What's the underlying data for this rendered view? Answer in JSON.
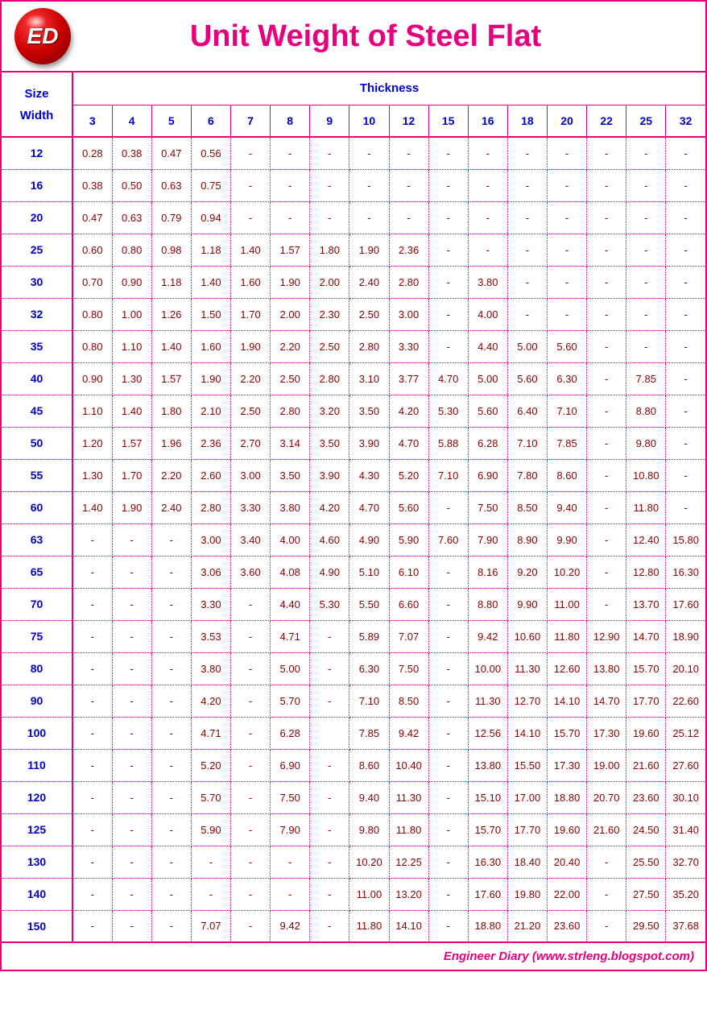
{
  "logo_text": "ED",
  "title": "Unit Weight of Steel Flat",
  "size_label": "Size",
  "width_label": "Width",
  "thickness_label": "Thickness",
  "footer": "Engineer Diary (www.strleng.blogspot.com)",
  "colors": {
    "border": "#e6007e",
    "header_text": "#0000cc",
    "data_text": "#8b0000",
    "title_text": "#e6007e",
    "footer_text": "#e6007e",
    "background": "#ffffff"
  },
  "table": {
    "thickness_cols": [
      "3",
      "4",
      "5",
      "6",
      "7",
      "8",
      "9",
      "10",
      "12",
      "15",
      "16",
      "18",
      "20",
      "22",
      "25",
      "32"
    ],
    "widths": [
      "12",
      "16",
      "20",
      "25",
      "30",
      "32",
      "35",
      "40",
      "45",
      "50",
      "55",
      "60",
      "63",
      "65",
      "70",
      "75",
      "80",
      "90",
      "100",
      "110",
      "120",
      "125",
      "130",
      "140",
      "150"
    ],
    "rows": [
      [
        "0.28",
        "0.38",
        "0.47",
        "0.56",
        "-",
        "-",
        "-",
        "-",
        "-",
        "-",
        "-",
        "-",
        "-",
        "-",
        "-",
        "-"
      ],
      [
        "0.38",
        "0.50",
        "0.63",
        "0.75",
        "-",
        "-",
        "-",
        "-",
        "-",
        "-",
        "-",
        "-",
        "-",
        "-",
        "-",
        "-"
      ],
      [
        "0.47",
        "0.63",
        "0.79",
        "0.94",
        "-",
        "-",
        "-",
        "-",
        "-",
        "-",
        "-",
        "-",
        "-",
        "-",
        "-",
        "-"
      ],
      [
        "0.60",
        "0.80",
        "0.98",
        "1.18",
        "1.40",
        "1.57",
        "1.80",
        "1.90",
        "2.36",
        "-",
        "-",
        "-",
        "-",
        "-",
        "-",
        "-"
      ],
      [
        "0.70",
        "0.90",
        "1.18",
        "1.40",
        "1.60",
        "1.90",
        "2.00",
        "2.40",
        "2.80",
        "-",
        "3.80",
        "-",
        "-",
        "-",
        "-",
        "-"
      ],
      [
        "0.80",
        "1.00",
        "1.26",
        "1.50",
        "1.70",
        "2.00",
        "2.30",
        "2.50",
        "3.00",
        "-",
        "4.00",
        "-",
        "-",
        "-",
        "-",
        "-"
      ],
      [
        "0.80",
        "1.10",
        "1.40",
        "1.60",
        "1.90",
        "2.20",
        "2.50",
        "2.80",
        "3.30",
        "-",
        "4.40",
        "5.00",
        "5.60",
        "-",
        "-",
        "-"
      ],
      [
        "0.90",
        "1.30",
        "1.57",
        "1.90",
        "2.20",
        "2.50",
        "2.80",
        "3.10",
        "3.77",
        "4.70",
        "5.00",
        "5.60",
        "6.30",
        "-",
        "7.85",
        "-"
      ],
      [
        "1.10",
        "1.40",
        "1.80",
        "2.10",
        "2.50",
        "2.80",
        "3.20",
        "3.50",
        "4.20",
        "5.30",
        "5.60",
        "6.40",
        "7.10",
        "-",
        "8.80",
        "-"
      ],
      [
        "1.20",
        "1.57",
        "1.96",
        "2.36",
        "2.70",
        "3.14",
        "3.50",
        "3.90",
        "4.70",
        "5.88",
        "6.28",
        "7.10",
        "7.85",
        "-",
        "9.80",
        "-"
      ],
      [
        "1.30",
        "1.70",
        "2.20",
        "2.60",
        "3.00",
        "3.50",
        "3.90",
        "4.30",
        "5.20",
        "7.10",
        "6.90",
        "7.80",
        "8.60",
        "-",
        "10.80",
        "-"
      ],
      [
        "1.40",
        "1.90",
        "2.40",
        "2.80",
        "3.30",
        "3.80",
        "4.20",
        "4.70",
        "5.60",
        "-",
        "7.50",
        "8.50",
        "9.40",
        "-",
        "11.80",
        "-"
      ],
      [
        "-",
        "-",
        "-",
        "3.00",
        "3.40",
        "4.00",
        "4.60",
        "4.90",
        "5.90",
        "7.60",
        "7.90",
        "8.90",
        "9.90",
        "-",
        "12.40",
        "15.80"
      ],
      [
        "-",
        "-",
        "-",
        "3.06",
        "3.60",
        "4.08",
        "4.90",
        "5.10",
        "6.10",
        "-",
        "8.16",
        "9.20",
        "10.20",
        "-",
        "12.80",
        "16.30"
      ],
      [
        "-",
        "-",
        "-",
        "3.30",
        "-",
        "4.40",
        "5.30",
        "5.50",
        "6.60",
        "-",
        "8.80",
        "9.90",
        "11.00",
        "-",
        "13.70",
        "17.60"
      ],
      [
        "-",
        "-",
        "-",
        "3.53",
        "-",
        "4.71",
        "-",
        "5.89",
        "7.07",
        "-",
        "9.42",
        "10.60",
        "11.80",
        "12.90",
        "14.70",
        "18.90"
      ],
      [
        "-",
        "-",
        "-",
        "3.80",
        "-",
        "5.00",
        "-",
        "6.30",
        "7.50",
        "-",
        "10.00",
        "11.30",
        "12.60",
        "13.80",
        "15.70",
        "20.10"
      ],
      [
        "-",
        "-",
        "-",
        "4.20",
        "-",
        "5.70",
        "-",
        "7.10",
        "8.50",
        "-",
        "11.30",
        "12.70",
        "14.10",
        "14.70",
        "17.70",
        "22.60"
      ],
      [
        "-",
        "-",
        "-",
        "4.71",
        "-",
        "6.28",
        "",
        "7.85",
        "9.42",
        "-",
        "12.56",
        "14.10",
        "15.70",
        "17.30",
        "19.60",
        "25.12"
      ],
      [
        "-",
        "-",
        "-",
        "5.20",
        "-",
        "6.90",
        "-",
        "8.60",
        "10.40",
        "-",
        "13.80",
        "15.50",
        "17.30",
        "19.00",
        "21.60",
        "27.60"
      ],
      [
        "-",
        "-",
        "-",
        "5.70",
        "-",
        "7.50",
        "-",
        "9.40",
        "11.30",
        "-",
        "15.10",
        "17.00",
        "18.80",
        "20.70",
        "23.60",
        "30.10"
      ],
      [
        "-",
        "-",
        "-",
        "5.90",
        "-",
        "7.90",
        "-",
        "9.80",
        "11.80",
        "-",
        "15.70",
        "17.70",
        "19.60",
        "21.60",
        "24.50",
        "31.40"
      ],
      [
        "-",
        "-",
        "-",
        "-",
        "-",
        "-",
        "-",
        "10.20",
        "12.25",
        "-",
        "16.30",
        "18.40",
        "20.40",
        "-",
        "25.50",
        "32.70"
      ],
      [
        "-",
        "-",
        "-",
        "-",
        "-",
        "-",
        "-",
        "11.00",
        "13.20",
        "-",
        "17.60",
        "19.80",
        "22.00",
        "-",
        "27.50",
        "35.20"
      ],
      [
        "-",
        "-",
        "-",
        "7.07",
        "-",
        "9.42",
        "-",
        "11.80",
        "14.10",
        "-",
        "18.80",
        "21.20",
        "23.60",
        "-",
        "29.50",
        "37.68"
      ]
    ]
  }
}
